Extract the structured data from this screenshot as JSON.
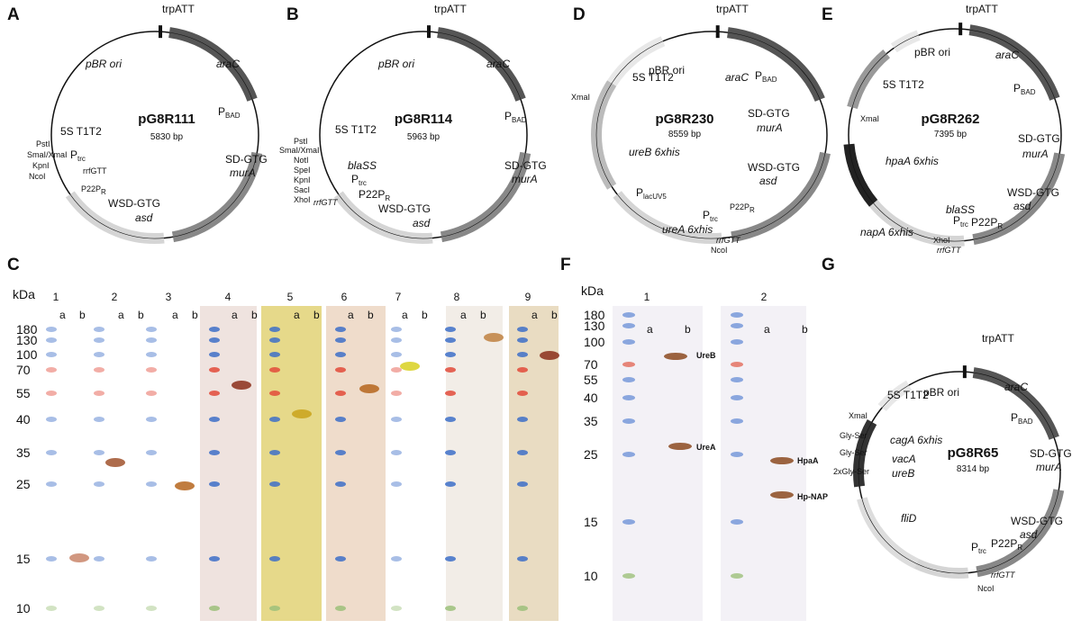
{
  "plasmids": [
    {
      "letter": "A",
      "name": "pG8R111",
      "size": "5830 bp",
      "labels": [
        "trpATT",
        "pBR ori",
        "araC",
        {
          "text": "P",
          "sub": "BAD"
        },
        "SD-GTG",
        "murA",
        "WSD-GTG",
        "asd",
        {
          "text": "P22P",
          "sub": "R"
        },
        "rrfGTT",
        {
          "text": "P",
          "sub": "trc"
        },
        "5S T1T2",
        "PstI",
        "SmaI/XmaI",
        "KpnI",
        "NcoI"
      ]
    },
    {
      "letter": "B",
      "name": "pG8R114",
      "size": "5963 bp",
      "labels": [
        "trpATT",
        "pBR ori",
        "araC",
        {
          "text": "P",
          "sub": "BAD"
        },
        "SD-GTG",
        "murA",
        "WSD-GTG",
        "asd",
        "5S T1T2",
        "PstI",
        "SmaI/XmaI",
        "NotI",
        "SpeI",
        "KpnI",
        "SacI",
        "XhoI",
        "blaSS",
        {
          "text": "P",
          "sub": "trc"
        },
        {
          "text": "P22P",
          "sub": "R"
        },
        "rrfGTT"
      ]
    },
    {
      "letter": "D",
      "name": "pG8R230",
      "size": "8559 bp",
      "labels": [
        "trpATT",
        "pBR ori",
        "araC",
        {
          "text": "P",
          "sub": "BAD"
        },
        "SD-GTG",
        "murA",
        "WSD-GTG",
        "asd",
        "5S T1T2",
        "XmaI",
        "ureB 6xhis",
        {
          "text": "P",
          "sub": "lacUV5"
        },
        "ureA 6xhis",
        {
          "text": "P",
          "sub": "trc"
        },
        {
          "text": "P22P",
          "sub": "R"
        },
        "rrfGTT",
        "NcoI"
      ]
    },
    {
      "letter": "E",
      "name": "pG8R262",
      "size": "7395 bp",
      "labels": [
        "trpATT",
        "pBR ori",
        "araC",
        {
          "text": "P",
          "sub": "BAD"
        },
        "SD-GTG",
        "murA",
        "WSD-GTG",
        "asd",
        "5S T1T2",
        "XmaI",
        "hpaA 6xhis",
        "blaSS",
        {
          "text": "P",
          "sub": "trc"
        },
        {
          "text": "P22P",
          "sub": "R"
        },
        "napA 6xhis",
        "XhoI",
        "rrfGTT"
      ]
    },
    {
      "letter": "G",
      "name": "pG8R65",
      "size": "8314 bp",
      "labels": [
        "trpATT",
        "pBR ori",
        "araC",
        {
          "text": "P",
          "sub": "BAD"
        },
        "SD-GTG",
        "murA",
        "WSD-GTG",
        "asd",
        "5S T1T2",
        "XmaI",
        "cagA 6xhis",
        "Gly-Ser",
        "vacA",
        "Gly-Ser",
        "ureB",
        "2xGly-Ser",
        "fliD",
        {
          "text": "P",
          "sub": "trc"
        },
        {
          "text": "P22P",
          "sub": "R"
        },
        "rrfGTT",
        "NcoI"
      ]
    }
  ],
  "blot_c": {
    "letter": "C",
    "unit": "kDa",
    "markers": [
      180,
      130,
      100,
      70,
      55,
      40,
      35,
      25,
      15,
      10
    ],
    "lanes": [
      1,
      2,
      3,
      4,
      5,
      6,
      7,
      8,
      9
    ],
    "sublanes": [
      "a",
      "b"
    ]
  },
  "blot_f": {
    "letter": "F",
    "unit": "kDa",
    "markers": [
      180,
      130,
      100,
      70,
      55,
      40,
      35,
      25,
      15,
      10
    ],
    "lanes": [
      1,
      2
    ],
    "sublanes": [
      "a",
      "b"
    ],
    "bands": [
      "UreB",
      "UreA",
      "HpaA",
      "Hp-NAP"
    ]
  }
}
